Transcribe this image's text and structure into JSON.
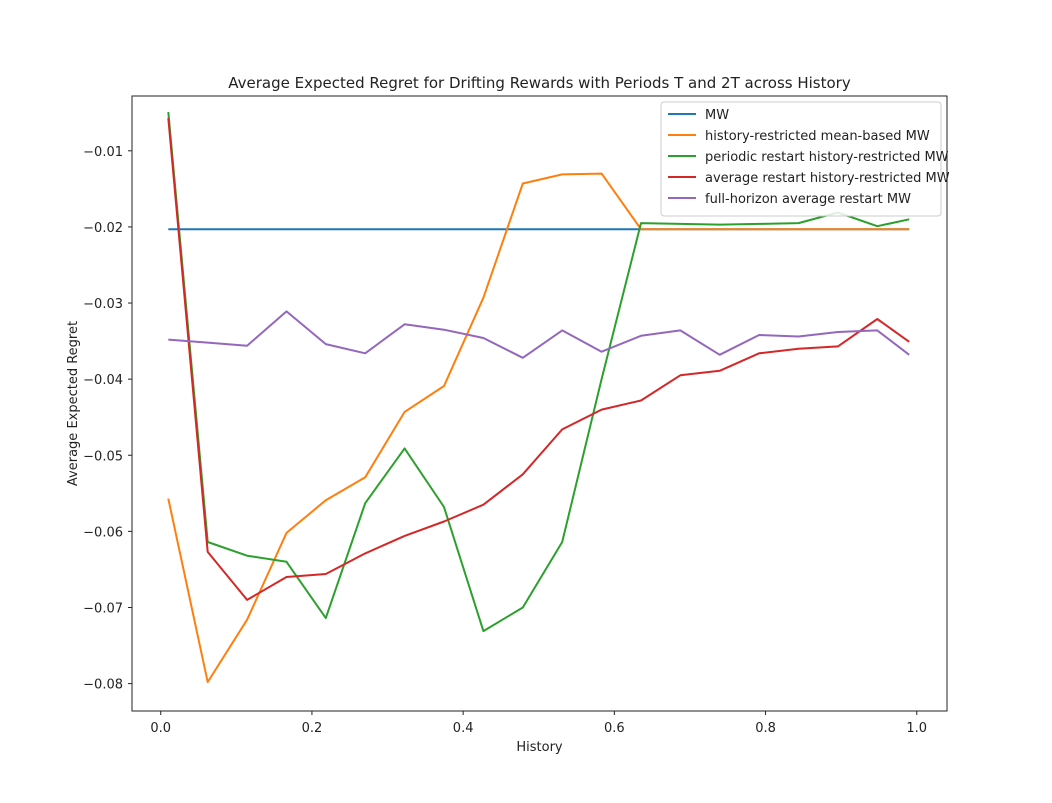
{
  "chart_data": {
    "type": "line",
    "title": "Average Expected Regret for Drifting Rewards with Periods T and 2T across History",
    "xlabel": "History",
    "ylabel": "Average Expected Regret",
    "xlim": [
      -0.038,
      1.04
    ],
    "ylim": [
      -0.0836,
      -0.0028
    ],
    "xticks": [
      0.0,
      0.2,
      0.4,
      0.6,
      0.8,
      1.0
    ],
    "xtick_labels": [
      "0.0",
      "0.2",
      "0.4",
      "0.6",
      "0.8",
      "1.0"
    ],
    "yticks": [
      -0.08,
      -0.07,
      -0.06,
      -0.05,
      -0.04,
      -0.03,
      -0.02,
      -0.01
    ],
    "ytick_labels": [
      "−0.08",
      "−0.07",
      "−0.06",
      "−0.05",
      "−0.04",
      "−0.03",
      "−0.02",
      "−0.01"
    ],
    "grid": false,
    "legend_position": "top-right",
    "x": [
      0.01,
      0.0621,
      0.1142,
      0.1663,
      0.2184,
      0.2705,
      0.3226,
      0.3747,
      0.4268,
      0.4789,
      0.531,
      0.5831,
      0.6352,
      0.6873,
      0.7394,
      0.7915,
      0.8436,
      0.8957,
      0.9478,
      0.99
    ],
    "series": [
      {
        "name": "MW",
        "color": "#1f77b4",
        "values": [
          -0.0203,
          -0.0203,
          -0.0203,
          -0.0203,
          -0.0203,
          -0.0203,
          -0.0203,
          -0.0203,
          -0.0203,
          -0.0203,
          -0.0203,
          -0.0203,
          -0.0203,
          -0.0203,
          -0.0203,
          -0.0203,
          -0.0203,
          -0.0203,
          -0.0203,
          -0.0203
        ]
      },
      {
        "name": "history-restricted mean-based MW",
        "color": "#ff7f0e",
        "values": [
          -0.0557,
          -0.0798,
          -0.0716,
          -0.0602,
          -0.0559,
          -0.0529,
          -0.0443,
          -0.0409,
          -0.0293,
          -0.0143,
          -0.0131,
          -0.013,
          -0.0203,
          -0.0203,
          -0.0203,
          -0.0203,
          -0.0203,
          -0.0203,
          -0.0203,
          -0.0203
        ]
      },
      {
        "name": "periodic restart history-restricted MW",
        "color": "#2ca02c",
        "values": [
          -0.0049,
          -0.0614,
          -0.0632,
          -0.064,
          -0.0714,
          -0.0563,
          -0.0491,
          -0.0568,
          -0.0731,
          -0.07,
          -0.0614,
          -0.04,
          -0.0195,
          -0.0196,
          -0.0197,
          -0.0196,
          -0.0195,
          -0.0181,
          -0.0199,
          -0.019
        ]
      },
      {
        "name": "average restart history-restricted MW",
        "color": "#d62728",
        "values": [
          -0.0057,
          -0.0627,
          -0.069,
          -0.066,
          -0.0656,
          -0.0629,
          -0.0606,
          -0.0587,
          -0.0565,
          -0.0525,
          -0.0466,
          -0.044,
          -0.0428,
          -0.0395,
          -0.0389,
          -0.0366,
          -0.036,
          -0.0357,
          -0.0321,
          -0.0351
        ]
      },
      {
        "name": "full-horizon average restart MW",
        "color": "#9467bd",
        "values": [
          -0.0348,
          -0.0352,
          -0.0356,
          -0.0311,
          -0.0354,
          -0.0366,
          -0.0328,
          -0.0335,
          -0.0346,
          -0.0372,
          -0.0336,
          -0.0364,
          -0.0343,
          -0.0336,
          -0.0368,
          -0.0342,
          -0.0344,
          -0.0338,
          -0.0336,
          -0.0368
        ]
      }
    ]
  }
}
